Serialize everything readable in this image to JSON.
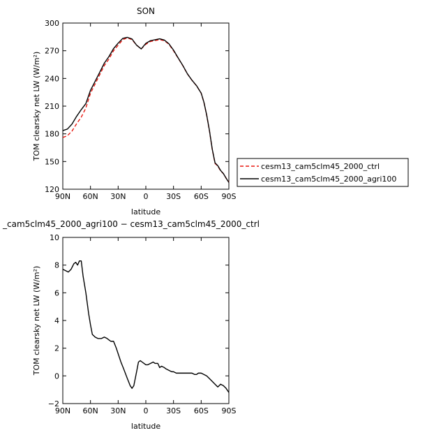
{
  "chart_data": [
    {
      "type": "line",
      "title": "SON",
      "xlabel": "latitude",
      "ylabel": "TOM clearsky net LW (W/m²)",
      "xlim": [
        90,
        -90
      ],
      "ylim": [
        120,
        300
      ],
      "xticks": [
        90,
        60,
        30,
        0,
        -30,
        -60,
        -90
      ],
      "xtick_labels": [
        "90N",
        "60N",
        "30N",
        "0",
        "30S",
        "60S",
        "90S"
      ],
      "yticks": [
        120,
        150,
        180,
        210,
        240,
        270,
        300
      ],
      "legend_position": "right",
      "series": [
        {
          "name": "cesm13_cam5clm45_2000_ctrl",
          "color": "#e8170f",
          "dash": "dashed",
          "x": [
            90,
            85,
            80,
            75,
            70,
            65,
            60,
            55,
            50,
            45,
            40,
            35,
            30,
            25,
            20,
            15,
            10,
            5,
            0,
            -5,
            -10,
            -15,
            -20,
            -25,
            -30,
            -35,
            -40,
            -45,
            -50,
            -55,
            -60,
            -63,
            -66,
            -69,
            -72,
            -75,
            -78,
            -81,
            -84,
            -87,
            -90
          ],
          "y": [
            176,
            178,
            183,
            191,
            198,
            208,
            224,
            234,
            244,
            254,
            261,
            270,
            276,
            282,
            284,
            282,
            276,
            272,
            277,
            280,
            281,
            282,
            281,
            277,
            270,
            262,
            254,
            245,
            238,
            232,
            224,
            214,
            200,
            183,
            163,
            148,
            145,
            140,
            137,
            132,
            128
          ]
        },
        {
          "name": "cesm13_cam5clm45_2000_agri100",
          "color": "#000000",
          "dash": "solid",
          "x": [
            90,
            85,
            80,
            75,
            70,
            65,
            60,
            55,
            50,
            45,
            40,
            35,
            30,
            25,
            20,
            15,
            10,
            5,
            0,
            -5,
            -10,
            -15,
            -20,
            -25,
            -30,
            -35,
            -40,
            -45,
            -50,
            -55,
            -60,
            -63,
            -66,
            -69,
            -72,
            -75,
            -78,
            -81,
            -84,
            -87,
            -90
          ],
          "y": [
            183.5,
            185.2,
            190.6,
            199,
            206.2,
            212.8,
            227.1,
            236.8,
            246.6,
            256.6,
            263.7,
            272.3,
            278.2,
            283.4,
            284.5,
            282.8,
            276,
            272,
            278,
            280.9,
            281.9,
            282.9,
            281.6,
            277.6,
            270.7,
            262.3,
            254.2,
            245.1,
            238.1,
            232.1,
            224.1,
            214.1,
            200.2,
            183.3,
            163.4,
            148.6,
            145.5,
            140.4,
            137,
            132,
            127.3
          ]
        }
      ]
    },
    {
      "type": "line",
      "title": "_cam5clm45_2000_agri100 − cesm13_cam5clm45_2000_ctrl",
      "xlabel": "latitude",
      "ylabel": "TOM clearsky net LW (W/m²)",
      "xlim": [
        90,
        -90
      ],
      "ylim": [
        -2,
        10
      ],
      "xticks": [
        90,
        60,
        30,
        0,
        -30,
        -60,
        -90
      ],
      "xtick_labels": [
        "90N",
        "60N",
        "30N",
        "0",
        "30S",
        "60S",
        "90S"
      ],
      "yticks": [
        -2,
        0,
        2,
        4,
        6,
        8,
        10
      ],
      "series": [
        {
          "color": "#000000",
          "dash": "solid",
          "x": [
            90,
            87,
            84,
            81,
            78,
            76,
            74,
            72,
            70,
            68,
            65,
            62,
            60,
            58,
            55,
            52,
            48,
            45,
            42,
            40,
            38,
            35,
            32,
            30,
            27,
            24,
            20,
            17,
            15,
            13,
            10,
            8,
            6,
            4,
            2,
            0,
            -2,
            -5,
            -8,
            -10,
            -13,
            -15,
            -17,
            -20,
            -22,
            -25,
            -28,
            -30,
            -33,
            -36,
            -40,
            -45,
            -50,
            -53,
            -55,
            -57,
            -60,
            -63,
            -66,
            -69,
            -72,
            -75,
            -78,
            -81,
            -84,
            -87,
            -90
          ],
          "y": [
            7.7,
            7.6,
            7.5,
            7.7,
            8.1,
            8.2,
            8.0,
            8.3,
            8.3,
            7.2,
            6.0,
            4.5,
            3.7,
            3.0,
            2.8,
            2.7,
            2.7,
            2.8,
            2.7,
            2.6,
            2.5,
            2.5,
            2.0,
            1.6,
            1.0,
            0.5,
            -0.2,
            -0.7,
            -0.9,
            -0.7,
            0.3,
            1.0,
            1.1,
            1.0,
            0.9,
            0.8,
            0.8,
            0.9,
            1.0,
            0.9,
            0.9,
            0.6,
            0.7,
            0.6,
            0.5,
            0.4,
            0.3,
            0.3,
            0.2,
            0.2,
            0.2,
            0.2,
            0.2,
            0.1,
            0.1,
            0.2,
            0.2,
            0.1,
            0.0,
            -0.2,
            -0.4,
            -0.6,
            -0.8,
            -0.6,
            -0.7,
            -0.9,
            -1.2
          ]
        }
      ]
    }
  ]
}
